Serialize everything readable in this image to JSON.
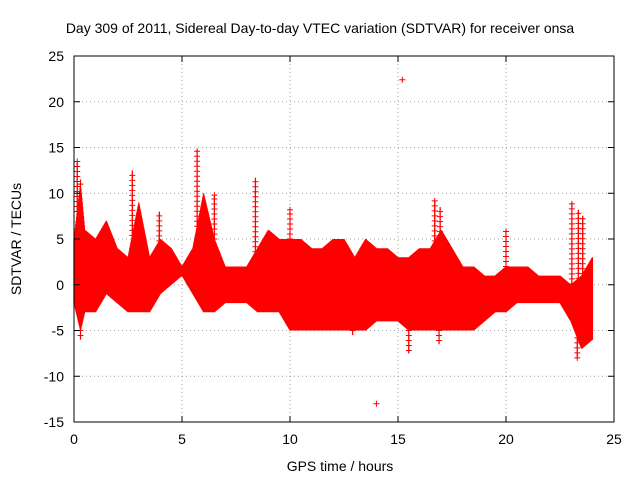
{
  "chart_data": {
    "type": "scatter",
    "title": "Day 309 of 2011, Sidereal Day-to-day VTEC variation (SDTVAR) for receiver onsa",
    "xlabel": "GPS time / hours",
    "ylabel": "SDTVAR / TECUs",
    "xlim": [
      0,
      25
    ],
    "ylim": [
      -15,
      25
    ],
    "xticks": [
      0,
      5,
      10,
      15,
      20,
      25
    ],
    "yticks": [
      -15,
      -10,
      -5,
      0,
      5,
      10,
      15,
      20,
      25
    ],
    "grid": true,
    "marker": "+",
    "color": "#ff0000",
    "series": [
      {
        "name": "SDTVAR",
        "envelope_x": [
          0.0,
          0.3,
          0.5,
          1.0,
          1.5,
          2.0,
          2.5,
          3.0,
          3.5,
          4.0,
          4.5,
          5.0,
          5.5,
          6.0,
          6.5,
          7.0,
          7.5,
          8.0,
          8.5,
          9.0,
          9.5,
          10.0,
          10.5,
          11.0,
          11.5,
          12.0,
          12.5,
          13.0,
          13.5,
          14.0,
          14.5,
          15.0,
          15.5,
          16.0,
          16.5,
          17.0,
          17.5,
          18.0,
          18.5,
          19.0,
          19.5,
          20.0,
          20.5,
          21.0,
          21.5,
          22.0,
          22.5,
          23.0,
          23.5,
          24.0
        ],
        "envelope_upper": [
          5,
          11,
          6,
          5,
          7,
          4,
          3,
          9,
          3,
          5,
          4,
          2,
          4,
          10,
          5,
          2,
          2,
          2,
          4,
          6,
          5,
          5,
          5,
          4,
          4,
          5,
          5,
          3,
          5,
          4,
          4,
          3,
          3,
          4,
          4,
          6,
          4,
          2,
          2,
          1,
          1,
          2,
          2,
          2,
          1,
          1,
          1,
          0,
          1,
          3
        ],
        "envelope_lower": [
          -2,
          -5,
          -3,
          -3,
          -1,
          -2,
          -3,
          -3,
          -3,
          -1,
          0,
          1,
          -1,
          -3,
          -3,
          -2,
          -2,
          -2,
          -3,
          -3,
          -3,
          -5,
          -5,
          -5,
          -5,
          -5,
          -5,
          -5,
          -5,
          -4,
          -4,
          -4,
          -5,
          -5,
          -5,
          -5,
          -5,
          -5,
          -5,
          -4,
          -3,
          -3,
          -2,
          -2,
          -2,
          -2,
          -2,
          -4,
          -7,
          -6
        ],
        "spikes": [
          [
            0.15,
            13.5
          ],
          [
            0.3,
            11.5
          ],
          [
            2.7,
            12.5
          ],
          [
            3.95,
            8.0
          ],
          [
            5.7,
            14.8
          ],
          [
            6.5,
            9.8
          ],
          [
            8.4,
            11.7
          ],
          [
            10.0,
            8.2
          ],
          [
            16.7,
            9.2
          ],
          [
            16.95,
            8.5
          ],
          [
            20.0,
            6.0
          ],
          [
            23.05,
            9.0
          ],
          [
            23.35,
            8.2
          ],
          [
            23.55,
            7.5
          ],
          [
            0.3,
            -6.0
          ],
          [
            16.9,
            -6.5
          ],
          [
            15.5,
            -7.5
          ],
          [
            23.3,
            -8.0
          ],
          [
            12.9,
            -5.5
          ]
        ],
        "outliers": [
          [
            15.2,
            22.4
          ],
          [
            14.0,
            -13.0
          ],
          [
            6.5,
            9.8
          ],
          [
            10.0,
            8.2
          ]
        ]
      }
    ]
  }
}
